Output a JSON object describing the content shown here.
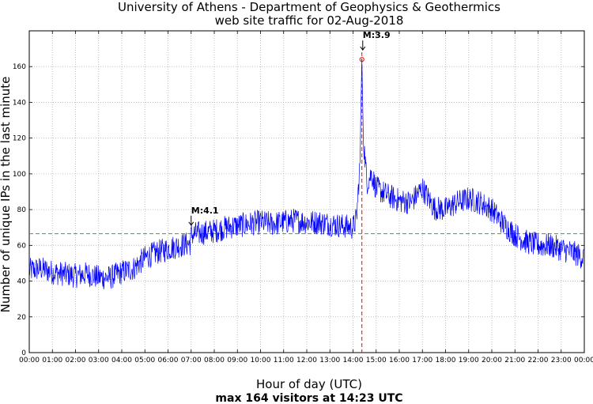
{
  "chart_data": {
    "type": "line",
    "title": "University of Athens - Department of Geophysics & Geothermics",
    "subtitle": "web site traffic for 02-Aug-2018",
    "xlabel": "Hour of day (UTC)",
    "ylabel": "Number of unique IPs in the last minute",
    "footer": "max 164 visitors at 14:23 UTC",
    "xlim": [
      0,
      24
    ],
    "ylim": [
      0,
      180
    ],
    "x_tick_labels": [
      "00:00",
      "01:00",
      "02:00",
      "03:00",
      "04:00",
      "05:00",
      "06:00",
      "07:00",
      "08:00",
      "09:00",
      "10:00",
      "11:00",
      "12:00",
      "13:00",
      "14:00",
      "15:00",
      "16:00",
      "17:00",
      "18:00",
      "19:00",
      "20:00",
      "21:00",
      "22:00",
      "23:00",
      "00:00"
    ],
    "y_ticks": [
      0,
      20,
      40,
      60,
      80,
      100,
      120,
      140,
      160
    ],
    "grid": true,
    "mean_line": 66.5,
    "peak_time_hours": 14.383,
    "peak_value": 164,
    "series": [
      {
        "name": "visitors",
        "color": "#0000ff",
        "x": [
          0,
          0.5,
          1,
          1.5,
          2,
          2.5,
          3,
          3.5,
          4,
          4.5,
          5,
          5.5,
          6,
          6.5,
          6.95,
          7,
          7.5,
          8,
          8.5,
          9,
          9.5,
          10,
          10.5,
          11,
          11.5,
          12,
          12.5,
          13,
          13.5,
          14,
          14.15,
          14.3,
          14.38,
          14.45,
          14.6,
          14.8,
          15,
          15.5,
          16,
          16.5,
          17,
          17.5,
          18,
          18.5,
          19,
          19.5,
          20,
          20.5,
          21,
          21.5,
          22,
          22.5,
          23,
          23.5,
          24
        ],
        "y": [
          46,
          47,
          45,
          44,
          43,
          44,
          42,
          42,
          45,
          47,
          53,
          56,
          58,
          60,
          61,
          66,
          67,
          68,
          70,
          71,
          72,
          73,
          72,
          73,
          74,
          73,
          73,
          72,
          71,
          70,
          75,
          105,
          164,
          120,
          95,
          100,
          92,
          88,
          85,
          84,
          92,
          81,
          80,
          84,
          86,
          84,
          80,
          72,
          66,
          62,
          60,
          60,
          58,
          56,
          53
        ]
      }
    ],
    "annotations": [
      {
        "label": "M:4.1",
        "x_hours": 7.0,
        "y": 66
      },
      {
        "label": "M:3.9",
        "x_hours": 14.42,
        "y": 164
      }
    ],
    "colors": {
      "line": "#0000ff",
      "mean": "#00cc00",
      "peak": "#ff0000",
      "grid": "#b0b0b0"
    }
  }
}
